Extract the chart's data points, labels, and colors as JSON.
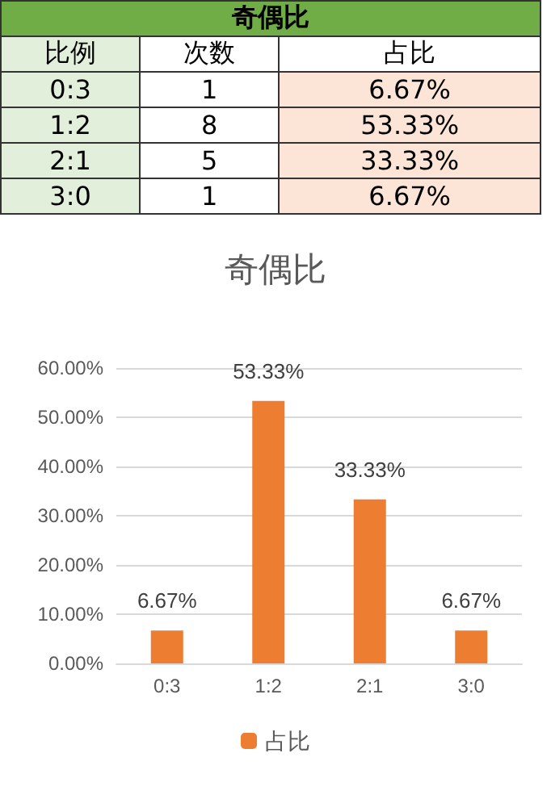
{
  "chart_data": [
    {
      "type": "other",
      "title": "奇偶比",
      "xlabel": "比例",
      "data_labels": true,
      "categories": [
        "0:3",
        "1:2",
        "2:1",
        "3:0"
      ],
      "series": [
        {
          "name": "次数",
          "values": [
            1,
            8,
            5,
            1
          ]
        },
        {
          "name": "占比",
          "color": "#fce4d6",
          "values": [
            6.67,
            53.33,
            33.33,
            6.67
          ],
          "value_labels": [
            "6.67%",
            "53.33%",
            "33.33%",
            "6.67%"
          ]
        }
      ]
    },
    {
      "type": "bar",
      "title": "奇偶比",
      "categories": [
        "0:3",
        "1:2",
        "2:1",
        "3:0"
      ],
      "series": [
        {
          "name": "占比",
          "color": "#ed7d31",
          "values": [
            6.67,
            53.33,
            33.33,
            6.67
          ],
          "value_labels": [
            "6.67%",
            "53.33%",
            "33.33%",
            "6.67%"
          ]
        }
      ],
      "ylim": [
        0,
        60
      ],
      "yticks": [
        {
          "value": 0,
          "label": "0.00%"
        },
        {
          "value": 10,
          "label": "10.00%"
        },
        {
          "value": 20,
          "label": "20.00%"
        },
        {
          "value": 30,
          "label": "30.00%"
        },
        {
          "value": 40,
          "label": "40.00%"
        },
        {
          "value": 50,
          "label": "50.00%"
        },
        {
          "value": 60,
          "label": "60.00%"
        }
      ],
      "grid": "y",
      "legend": "bottom"
    }
  ]
}
